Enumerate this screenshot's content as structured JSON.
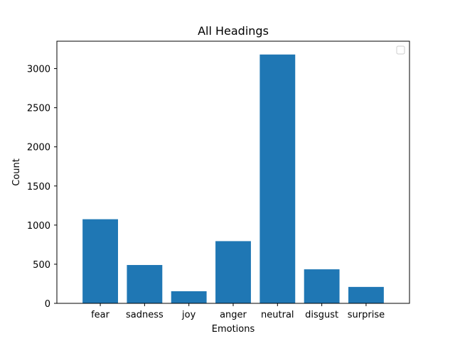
{
  "chart_data": {
    "type": "bar",
    "title": "All Headings",
    "xlabel": "Emotions",
    "ylabel": "Count",
    "categories": [
      "fear",
      "sadness",
      "joy",
      "anger",
      "neutral",
      "disgust",
      "surprise"
    ],
    "values": [
      1075,
      490,
      155,
      795,
      3180,
      435,
      210
    ],
    "ylim": [
      0,
      3350
    ],
    "yticks": [
      0,
      500,
      1000,
      1500,
      2000,
      2500,
      3000
    ],
    "bar_color": "#1f77b4",
    "grid": false,
    "legend": {
      "placement": "top-right",
      "entries": []
    }
  }
}
